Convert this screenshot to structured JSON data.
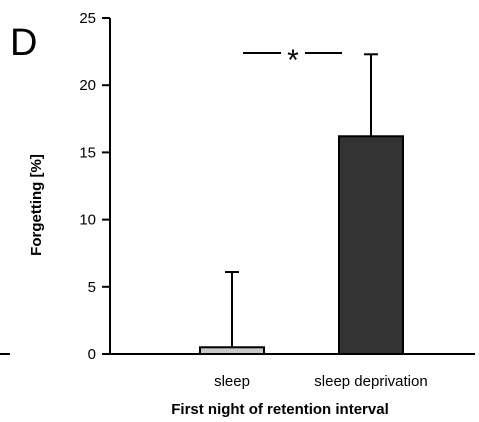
{
  "panel_label": "D",
  "chart_data": {
    "type": "bar",
    "categories": [
      "sleep",
      "sleep deprivation"
    ],
    "values": [
      0.5,
      16.2
    ],
    "error_upper": [
      6.1,
      22.3
    ],
    "bar_colors": [
      "#c8c8c8",
      "#333333"
    ],
    "xlabel": "First night of retention interval",
    "ylabel": "Forgetting [%]",
    "ylim": [
      0,
      25
    ],
    "yticks": [
      "0",
      "5",
      "10",
      "15",
      "20",
      "25"
    ],
    "grid": false,
    "significance": "*"
  }
}
